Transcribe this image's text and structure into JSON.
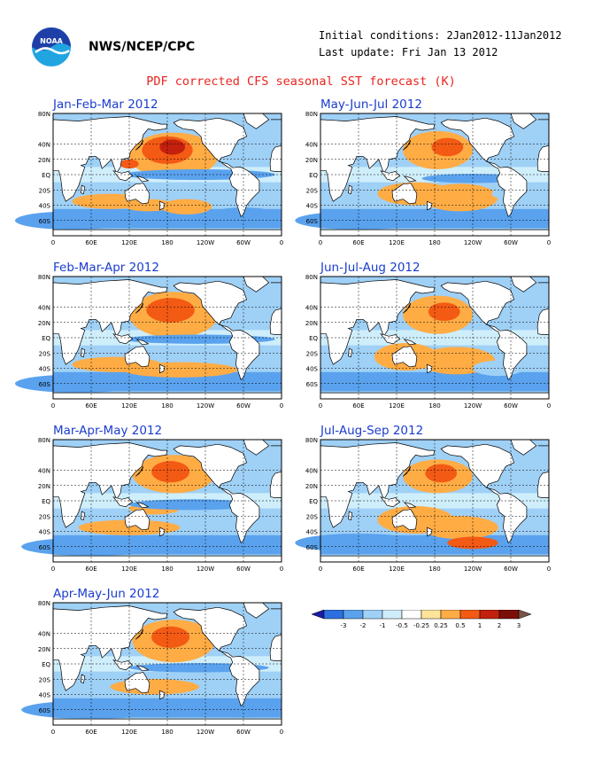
{
  "header": {
    "agency": "NWS/NCEP/CPC",
    "initial_conditions": "Initial conditions: 2Jan2012-11Jan2012",
    "last_update": "Last update: Fri Jan 13 2012",
    "title": "PDF corrected CFS seasonal SST forecast (K)"
  },
  "logo": {
    "text": "NOAA",
    "colors": {
      "top": "#1f3fa8",
      "bottom": "#21a5e0"
    }
  },
  "panels": [
    {
      "title": "Jan-Feb-Mar 2012"
    },
    {
      "title": "May-Jun-Jul 2012"
    },
    {
      "title": "Feb-Mar-Apr 2012"
    },
    {
      "title": "Jun-Jul-Aug 2012"
    },
    {
      "title": "Mar-Apr-May 2012"
    },
    {
      "title": "Jul-Aug-Sep 2012"
    },
    {
      "title": "Apr-May-Jun 2012"
    }
  ],
  "axes": {
    "lat_labels": [
      "80N",
      "40N",
      "20N",
      "EQ",
      "20S",
      "40S",
      "60S"
    ],
    "lon_labels": [
      "0",
      "60E",
      "120E",
      "180",
      "120W",
      "60W",
      "0"
    ]
  },
  "legend": {
    "labels": [
      "-3",
      "-2",
      "-1",
      "-0.5",
      "-0.25",
      "0.25",
      "0.5",
      "1",
      "2",
      "3"
    ],
    "colors": [
      "#1a1aa8",
      "#2d6fe0",
      "#5aa2ee",
      "#9fd0f6",
      "#cfeefc",
      "#ffffff",
      "#ffe49a",
      "#ffac45",
      "#f35a14",
      "#c3200e",
      "#7a0f08",
      "#7a5246"
    ]
  },
  "palette": {
    "land": "#ffffff",
    "coast": "#000000",
    "grid": "#000000",
    "title_color": "#e8241c",
    "panel_title_color": "#1a3ccf"
  }
}
